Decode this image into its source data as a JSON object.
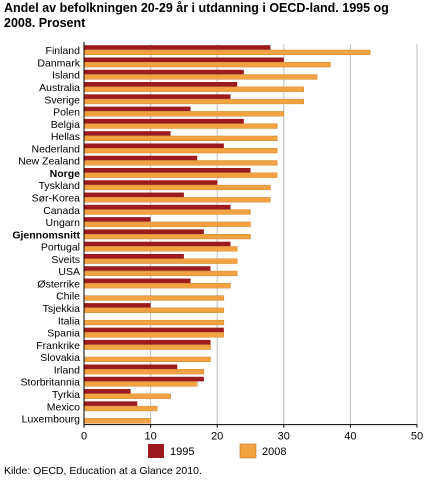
{
  "title_lines": [
    "Andel av befolkningen 20-29 år i utdanning i OECD-land. 1995 og",
    "2008. Prosent"
  ],
  "source": "Kilde: OECD, Education at a Glance 2010.",
  "colors": {
    "s1995": "#9b1b1f",
    "s2008": "#f3a242",
    "grid": "#bfbfbf"
  },
  "chart_data": {
    "type": "bar",
    "orientation": "horizontal",
    "title": "Andel av befolkningen 20-29 år i utdanning i OECD-land. 1995 og 2008. Prosent",
    "xlim": [
      0,
      50
    ],
    "xticks": [
      0,
      10,
      20,
      30,
      40,
      50
    ],
    "grid": true,
    "legend_position": "bottom",
    "bold_categories": [
      "Norge",
      "Gjennomsnitt"
    ],
    "categories": [
      "Finland",
      "Danmark",
      "Island",
      "Australia",
      "Sverige",
      "Polen",
      "Belgia",
      "Hellas",
      "Nederland",
      "New Zealand",
      "Norge",
      "Tyskland",
      "Sør-Korea",
      "Canada",
      "Ungarn",
      "Gjennomsnitt",
      "Portugal",
      "Sveits",
      "USA",
      "Østerrike",
      "Chile",
      "Tsjekkia",
      "Italia",
      "Spania",
      "Frankrike",
      "Slovakia",
      "Irland",
      "Storbritannia",
      "Tyrkia",
      "Mexico",
      "Luxembourg"
    ],
    "series": [
      {
        "name": "1995",
        "values": [
          28,
          30,
          24,
          23,
          22,
          16,
          24,
          13,
          21,
          17,
          25,
          20,
          15,
          22,
          10,
          18,
          22,
          15,
          19,
          16,
          null,
          10,
          null,
          21,
          19,
          null,
          14,
          18,
          7,
          8,
          null
        ]
      },
      {
        "name": "2008",
        "values": [
          43,
          37,
          35,
          33,
          33,
          30,
          29,
          29,
          29,
          29,
          29,
          28,
          28,
          25,
          25,
          25,
          23,
          23,
          23,
          22,
          21,
          21,
          21,
          21,
          19,
          19,
          18,
          17,
          13,
          11,
          10
        ]
      }
    ]
  }
}
